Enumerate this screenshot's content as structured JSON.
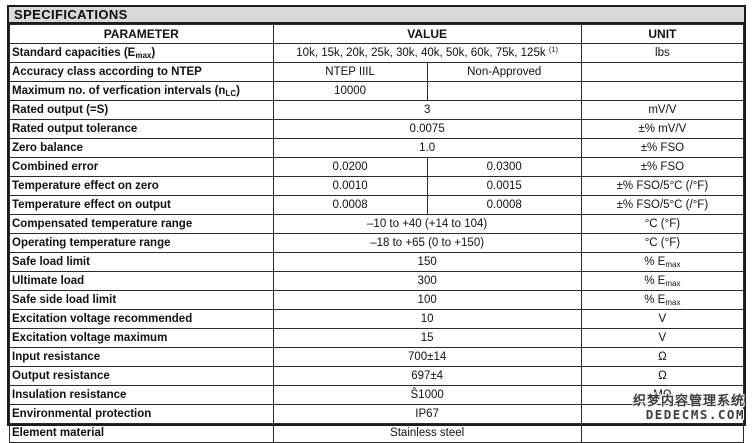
{
  "title": "SPECIFICATIONS",
  "colors": {
    "band_bg": "#d9d9d9",
    "table_border": "#1c1c1c",
    "text": "#111111",
    "watermark_text": "#3d3d3d"
  },
  "watermark": {
    "line1": "织梦内容管理系统",
    "line2": "DEDECMS.COM"
  },
  "table": {
    "headers": [
      "PARAMETER",
      "VALUE",
      "UNIT"
    ],
    "rows": [
      {
        "param": [
          "Standard capacities (E",
          {
            "sub": "max"
          },
          ")"
        ],
        "value": {
          "type": "full",
          "parts": [
            "10k, 15k, 20k, 25k, 30k, 40k, 50k, 60k, 75k, 125k ",
            {
              "sup": "(1)"
            }
          ]
        },
        "unit": [
          "lbs"
        ]
      },
      {
        "param": [
          "Accuracy class according to NTEP"
        ],
        "value": {
          "type": "split",
          "left": [
            "NTEP IIIL"
          ],
          "right": [
            "Non-Approved"
          ]
        },
        "unit": []
      },
      {
        "param": [
          "Maximum no. of verfication intervals (n",
          {
            "sub": "LC"
          },
          ")"
        ],
        "value": {
          "type": "split",
          "left": [
            "10000"
          ],
          "right": []
        },
        "unit": []
      },
      {
        "param": [
          "Rated output (=S)"
        ],
        "value": {
          "type": "full",
          "parts": [
            "3"
          ]
        },
        "unit": [
          "mV/V"
        ]
      },
      {
        "param": [
          "Rated output tolerance"
        ],
        "value": {
          "type": "full",
          "parts": [
            "0.0075"
          ]
        },
        "unit": [
          "±% mV/V"
        ]
      },
      {
        "param": [
          "Zero balance"
        ],
        "value": {
          "type": "full",
          "parts": [
            "1.0"
          ]
        },
        "unit": [
          "±% FSO"
        ]
      },
      {
        "param": [
          "Combined error"
        ],
        "value": {
          "type": "split",
          "left": [
            "0.0200"
          ],
          "right": [
            "0.0300"
          ]
        },
        "unit": [
          "±% FSO"
        ]
      },
      {
        "param": [
          "Temperature effect on zero"
        ],
        "value": {
          "type": "split",
          "left": [
            "0.0010"
          ],
          "right": [
            "0.0015"
          ]
        },
        "unit": [
          "±% FSO/5°C (/°F)"
        ]
      },
      {
        "param": [
          "Temperature effect on output"
        ],
        "value": {
          "type": "split",
          "left": [
            "0.0008"
          ],
          "right": [
            "0.0008"
          ]
        },
        "unit": [
          "±% FSO/5°C (/°F)"
        ]
      },
      {
        "param": [
          "Compensated temperature range"
        ],
        "value": {
          "type": "full",
          "parts": [
            "–10 to +40 (+14 to 104)"
          ]
        },
        "unit": [
          "°C (°F)"
        ]
      },
      {
        "param": [
          "Operating temperature range"
        ],
        "value": {
          "type": "full",
          "parts": [
            "–18 to +65 (0 to +150)"
          ]
        },
        "unit": [
          "°C (°F)"
        ]
      },
      {
        "param": [
          "Safe load limit"
        ],
        "value": {
          "type": "full",
          "parts": [
            "150"
          ]
        },
        "unit": [
          "% E",
          {
            "sub": "max"
          }
        ]
      },
      {
        "param": [
          "Ultimate load"
        ],
        "value": {
          "type": "full",
          "parts": [
            "300"
          ]
        },
        "unit": [
          "% E",
          {
            "sub": "max"
          }
        ]
      },
      {
        "param": [
          "Safe side load limit"
        ],
        "value": {
          "type": "full",
          "parts": [
            "100"
          ]
        },
        "unit": [
          "% E",
          {
            "sub": "max"
          }
        ]
      },
      {
        "param": [
          "Excitation voltage recommended"
        ],
        "value": {
          "type": "full",
          "parts": [
            "10"
          ]
        },
        "unit": [
          "V"
        ]
      },
      {
        "param": [
          "Excitation voltage maximum"
        ],
        "value": {
          "type": "full",
          "parts": [
            "15"
          ]
        },
        "unit": [
          "V"
        ]
      },
      {
        "param": [
          "Input resistance"
        ],
        "value": {
          "type": "full",
          "parts": [
            "700±14"
          ]
        },
        "unit": [
          "Ω"
        ]
      },
      {
        "param": [
          "Output resistance"
        ],
        "value": {
          "type": "full",
          "parts": [
            "697±4"
          ]
        },
        "unit": [
          "Ω"
        ]
      },
      {
        "param": [
          "Insulation resistance"
        ],
        "value": {
          "type": "full",
          "parts": [
            "Ŝ1000"
          ]
        },
        "unit": [
          "MΩ"
        ]
      },
      {
        "param": [
          "Environmental protection"
        ],
        "value": {
          "type": "full",
          "parts": [
            "IP67"
          ]
        },
        "unit": []
      },
      {
        "param": [
          "Element material"
        ],
        "value": {
          "type": "full",
          "parts": [
            "Stainless steel"
          ]
        },
        "unit": []
      }
    ]
  }
}
